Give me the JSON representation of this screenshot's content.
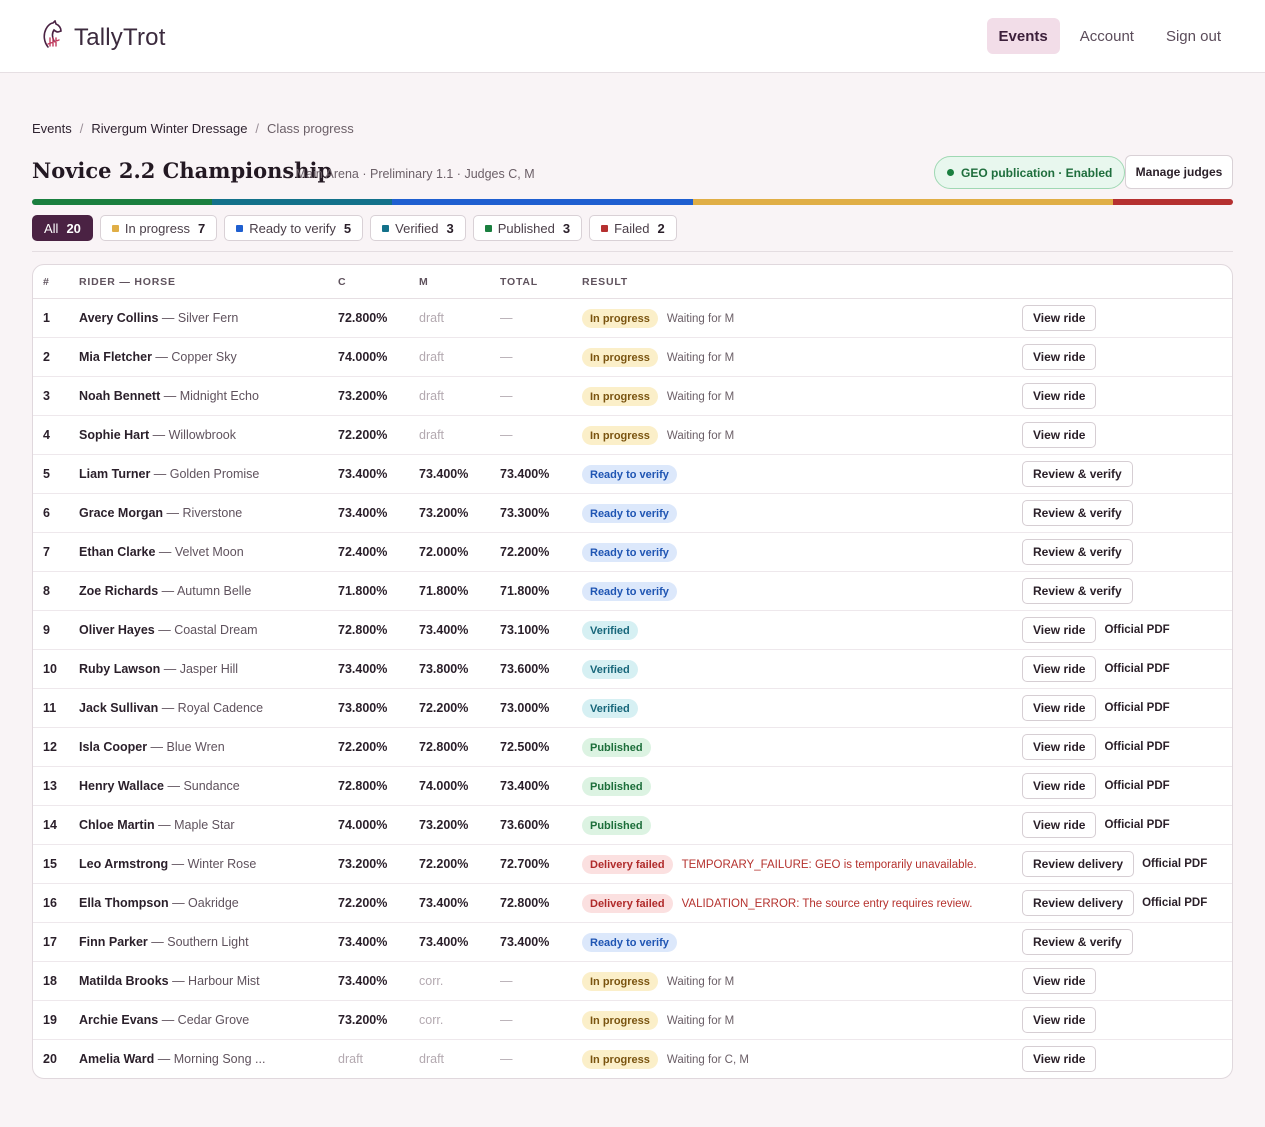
{
  "brand": {
    "name": "TallyTrot",
    "logo_icon": "horse-tally-icon"
  },
  "nav": [
    "Events",
    "Account",
    "Sign out"
  ],
  "breadcrumb": {
    "events": "Events",
    "event": "Rivergum Winter Dressage",
    "current": "Class progress",
    "separator": "/"
  },
  "page": {
    "title": "Novice 2.2 Championship",
    "subtitle": "· Main Arena · Preliminary 1.1 · Judges C, M",
    "geo_badge": "GEO publication · Enabled",
    "manage_judges": "Manage judges"
  },
  "progress_colors": {
    "published": "#1a7f3f",
    "verified": "#13718a",
    "ready": "#1f5fd0",
    "in_progress": "#e0ae46",
    "failed": "#b53030"
  },
  "filters": [
    {
      "label": "All",
      "count": "20",
      "color": ""
    },
    {
      "label": "In progress",
      "count": "7",
      "color": "#e0ae46"
    },
    {
      "label": "Ready to verify",
      "count": "5",
      "color": "#1f5fd0"
    },
    {
      "label": "Verified",
      "count": "3",
      "color": "#13718a"
    },
    {
      "label": "Published",
      "count": "3",
      "color": "#1a7f3f"
    },
    {
      "label": "Failed",
      "count": "2",
      "color": "#b53030"
    }
  ],
  "columns": {
    "num": "#",
    "rider": "RIDER — HORSE",
    "c": "C",
    "m": "M",
    "total": "TOTAL",
    "result": "RESULT"
  },
  "rows": [
    {
      "num": "1",
      "rider": "Avery Collins",
      "horse": " — Silver Fern",
      "c": "72.800%",
      "m": "draft",
      "total": "—",
      "status": "In progress",
      "note": "Waiting for M",
      "action": "View ride",
      "pdf": ""
    },
    {
      "num": "2",
      "rider": "Mia Fletcher",
      "horse": " — Copper Sky",
      "c": "74.000%",
      "m": "draft",
      "total": "—",
      "status": "In progress",
      "note": "Waiting for M",
      "action": "View ride",
      "pdf": ""
    },
    {
      "num": "3",
      "rider": "Noah Bennett",
      "horse": " — Midnight Echo",
      "c": "73.200%",
      "m": "draft",
      "total": "—",
      "status": "In progress",
      "note": "Waiting for M",
      "action": "View ride",
      "pdf": ""
    },
    {
      "num": "4",
      "rider": "Sophie Hart",
      "horse": " — Willowbrook",
      "c": "72.200%",
      "m": "draft",
      "total": "—",
      "status": "In progress",
      "note": "Waiting for M",
      "action": "View ride",
      "pdf": ""
    },
    {
      "num": "5",
      "rider": "Liam Turner",
      "horse": " — Golden Promise",
      "c": "73.400%",
      "m": "73.400%",
      "total": "73.400%",
      "status": "Ready to verify",
      "note": "",
      "action": "Review & verify",
      "pdf": ""
    },
    {
      "num": "6",
      "rider": "Grace Morgan",
      "horse": " — Riverstone",
      "c": "73.400%",
      "m": "73.200%",
      "total": "73.300%",
      "status": "Ready to verify",
      "note": "",
      "action": "Review & verify",
      "pdf": ""
    },
    {
      "num": "7",
      "rider": "Ethan Clarke",
      "horse": " — Velvet Moon",
      "c": "72.400%",
      "m": "72.000%",
      "total": "72.200%",
      "status": "Ready to verify",
      "note": "",
      "action": "Review & verify",
      "pdf": ""
    },
    {
      "num": "8",
      "rider": "Zoe Richards",
      "horse": " — Autumn Belle",
      "c": "71.800%",
      "m": "71.800%",
      "total": "71.800%",
      "status": "Ready to verify",
      "note": "",
      "action": "Review & verify",
      "pdf": ""
    },
    {
      "num": "9",
      "rider": "Oliver Hayes",
      "horse": " — Coastal Dream",
      "c": "72.800%",
      "m": "73.400%",
      "total": "73.100%",
      "status": "Verified",
      "note": "",
      "action": "View ride",
      "pdf": "Official PDF"
    },
    {
      "num": "10",
      "rider": "Ruby Lawson",
      "horse": " — Jasper Hill",
      "c": "73.400%",
      "m": "73.800%",
      "total": "73.600%",
      "status": "Verified",
      "note": "",
      "action": "View ride",
      "pdf": "Official PDF"
    },
    {
      "num": "11",
      "rider": "Jack Sullivan",
      "horse": " — Royal Cadence",
      "c": "73.800%",
      "m": "72.200%",
      "total": "73.000%",
      "status": "Verified",
      "note": "",
      "action": "View ride",
      "pdf": "Official PDF"
    },
    {
      "num": "12",
      "rider": "Isla Cooper",
      "horse": " — Blue Wren",
      "c": "72.200%",
      "m": "72.800%",
      "total": "72.500%",
      "status": "Published",
      "note": "",
      "action": "View ride",
      "pdf": "Official PDF"
    },
    {
      "num": "13",
      "rider": "Henry Wallace",
      "horse": " — Sundance",
      "c": "72.800%",
      "m": "74.000%",
      "total": "73.400%",
      "status": "Published",
      "note": "",
      "action": "View ride",
      "pdf": "Official PDF"
    },
    {
      "num": "14",
      "rider": "Chloe Martin",
      "horse": " — Maple Star",
      "c": "74.000%",
      "m": "73.200%",
      "total": "73.600%",
      "status": "Published",
      "note": "",
      "action": "View ride",
      "pdf": "Official PDF"
    },
    {
      "num": "15",
      "rider": "Leo Armstrong",
      "horse": " — Winter Rose",
      "c": "73.200%",
      "m": "72.200%",
      "total": "72.700%",
      "status": "Delivery failed",
      "note": "TEMPORARY_FAILURE: GEO is temporarily unavailable.",
      "action": "Review delivery",
      "pdf": "Official PDF"
    },
    {
      "num": "16",
      "rider": "Ella Thompson",
      "horse": " — Oakridge",
      "c": "72.200%",
      "m": "73.400%",
      "total": "72.800%",
      "status": "Delivery failed",
      "note": "VALIDATION_ERROR: The source entry requires review.",
      "action": "Review delivery",
      "pdf": "Official PDF"
    },
    {
      "num": "17",
      "rider": "Finn Parker",
      "horse": " — Southern Light",
      "c": "73.400%",
      "m": "73.400%",
      "total": "73.400%",
      "status": "Ready to verify",
      "note": "",
      "action": "Review & verify",
      "pdf": ""
    },
    {
      "num": "18",
      "rider": "Matilda Brooks",
      "horse": " — Harbour Mist",
      "c": "73.400%",
      "m": "corr.",
      "total": "—",
      "status": "In progress",
      "note": "Waiting for M",
      "action": "View ride",
      "pdf": ""
    },
    {
      "num": "19",
      "rider": "Archie Evans",
      "horse": " — Cedar Grove",
      "c": "73.200%",
      "m": "corr.",
      "total": "—",
      "status": "In progress",
      "note": "Waiting for M",
      "action": "View ride",
      "pdf": ""
    },
    {
      "num": "20",
      "rider": "Amelia Ward",
      "horse": " — Morning Song ...",
      "c": "draft",
      "m": "draft",
      "total": "—",
      "status": "In progress",
      "note": "Waiting for C, M",
      "action": "View ride",
      "pdf": ""
    }
  ]
}
